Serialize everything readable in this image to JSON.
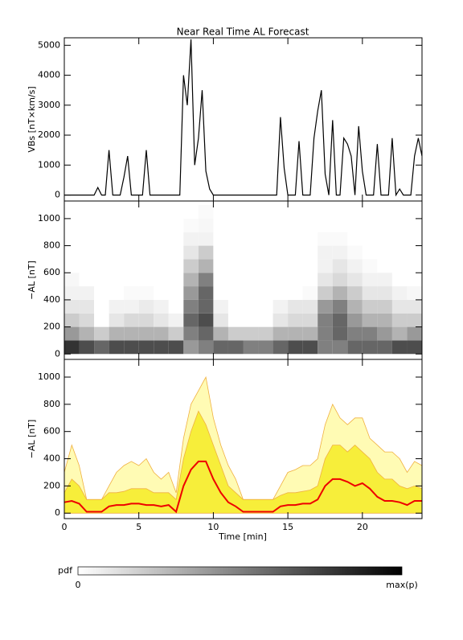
{
  "chart_data": [
    {
      "type": "line",
      "title": "Near Real Time AL Forecast",
      "ylabel": "VBs [nT×km/s]",
      "color": "#000000",
      "xlim": [
        0,
        24
      ],
      "ylim": [
        -200,
        5250
      ],
      "yticks": [
        0,
        1000,
        2000,
        3000,
        4000,
        5000
      ],
      "x": [
        0,
        0.25,
        0.5,
        0.75,
        1,
        1.25,
        1.5,
        1.75,
        2,
        2.25,
        2.5,
        2.75,
        3,
        3.25,
        3.5,
        3.75,
        4,
        4.25,
        4.5,
        4.75,
        5,
        5.25,
        5.5,
        5.75,
        6,
        6.25,
        6.5,
        6.75,
        7,
        7.25,
        7.5,
        7.75,
        8,
        8.25,
        8.5,
        8.75,
        9,
        9.25,
        9.5,
        9.75,
        10,
        10.25,
        10.5,
        10.75,
        11,
        11.25,
        11.5,
        11.75,
        12,
        12.25,
        12.5,
        12.75,
        13,
        13.25,
        13.5,
        13.75,
        14,
        14.25,
        14.5,
        14.75,
        15,
        15.25,
        15.5,
        15.75,
        16,
        16.25,
        16.5,
        16.75,
        17,
        17.25,
        17.5,
        17.75,
        18,
        18.25,
        18.5,
        18.75,
        19,
        19.25,
        19.5,
        19.75,
        20,
        20.25,
        20.5,
        20.75,
        21,
        21.25,
        21.5,
        21.75,
        22,
        22.25,
        22.5,
        22.75,
        23,
        23.25,
        23.5,
        23.75,
        24
      ],
      "values": [
        0,
        0,
        0,
        0,
        0,
        0,
        0,
        0,
        0,
        250,
        0,
        0,
        1500,
        0,
        0,
        0,
        600,
        1300,
        0,
        0,
        0,
        0,
        1500,
        0,
        0,
        0,
        0,
        0,
        0,
        0,
        0,
        0,
        4000,
        3000,
        5200,
        1000,
        1900,
        3500,
        800,
        200,
        0,
        0,
        0,
        0,
        0,
        0,
        0,
        0,
        0,
        0,
        0,
        0,
        0,
        0,
        0,
        0,
        0,
        0,
        2600,
        900,
        0,
        0,
        0,
        1800,
        0,
        0,
        0,
        1900,
        2800,
        3500,
        700,
        0,
        2500,
        0,
        0,
        1900,
        1700,
        1300,
        0,
        2300,
        800,
        0,
        0,
        0,
        1700,
        0,
        0,
        0,
        1900,
        0,
        200,
        0,
        0,
        0,
        1300,
        1900,
        1300
      ]
    },
    {
      "type": "heatmap",
      "ylabel": "−AL [nT]",
      "xlim": [
        0,
        24
      ],
      "ylim": [
        -40,
        1130
      ],
      "yticks": [
        0,
        200,
        400,
        600,
        800,
        1000
      ],
      "xbins": [
        0,
        1,
        2,
        3,
        4,
        5,
        6,
        7,
        8,
        9,
        10,
        11,
        12,
        13,
        14,
        15,
        16,
        17,
        18,
        19,
        20,
        21,
        22,
        23,
        24
      ],
      "ybins": [
        0,
        100,
        200,
        300,
        400,
        500,
        600,
        700,
        800,
        900,
        1000,
        1100
      ],
      "values": [
        [
          0.8,
          0.4,
          0.2,
          0.1,
          0.05,
          0.03,
          0,
          0,
          0,
          0,
          0
        ],
        [
          0.7,
          0.3,
          0.15,
          0.1,
          0.05,
          0,
          0,
          0,
          0,
          0,
          0
        ],
        [
          0.6,
          0.2,
          0,
          0,
          0,
          0,
          0,
          0,
          0,
          0,
          0
        ],
        [
          0.7,
          0.3,
          0.1,
          0.05,
          0,
          0,
          0,
          0,
          0,
          0,
          0
        ],
        [
          0.7,
          0.3,
          0.15,
          0.05,
          0.02,
          0,
          0,
          0,
          0,
          0,
          0
        ],
        [
          0.7,
          0.3,
          0.15,
          0.08,
          0.02,
          0,
          0,
          0,
          0,
          0,
          0
        ],
        [
          0.7,
          0.3,
          0.1,
          0.05,
          0,
          0,
          0,
          0,
          0,
          0,
          0
        ],
        [
          0.7,
          0.2,
          0.05,
          0,
          0,
          0,
          0,
          0,
          0,
          0,
          0
        ],
        [
          0.4,
          0.5,
          0.6,
          0.5,
          0.4,
          0.3,
          0.2,
          0.1,
          0.05,
          0.02,
          0
        ],
        [
          0.5,
          0.6,
          0.7,
          0.6,
          0.6,
          0.5,
          0.3,
          0.2,
          0.05,
          0.03,
          0.02
        ],
        [
          0.6,
          0.3,
          0.1,
          0.05,
          0,
          0,
          0,
          0,
          0,
          0,
          0
        ],
        [
          0.6,
          0.2,
          0,
          0,
          0,
          0,
          0,
          0,
          0,
          0,
          0
        ],
        [
          0.5,
          0.2,
          0,
          0,
          0,
          0,
          0,
          0,
          0,
          0,
          0
        ],
        [
          0.5,
          0.2,
          0,
          0,
          0,
          0,
          0,
          0,
          0,
          0,
          0
        ],
        [
          0.6,
          0.3,
          0.1,
          0.05,
          0,
          0,
          0,
          0,
          0,
          0,
          0
        ],
        [
          0.7,
          0.3,
          0.15,
          0.1,
          0,
          0,
          0,
          0,
          0,
          0,
          0
        ],
        [
          0.7,
          0.3,
          0.15,
          0.1,
          0.02,
          0,
          0,
          0,
          0,
          0,
          0
        ],
        [
          0.5,
          0.5,
          0.5,
          0.4,
          0.2,
          0.1,
          0.05,
          0.05,
          0.02,
          0,
          0
        ],
        [
          0.5,
          0.6,
          0.6,
          0.5,
          0.3,
          0.15,
          0.1,
          0.05,
          0.02,
          0,
          0
        ],
        [
          0.6,
          0.5,
          0.4,
          0.3,
          0.2,
          0.1,
          0.05,
          0.02,
          0,
          0,
          0
        ],
        [
          0.6,
          0.5,
          0.3,
          0.2,
          0.1,
          0.05,
          0.02,
          0,
          0,
          0,
          0
        ],
        [
          0.6,
          0.4,
          0.3,
          0.2,
          0.1,
          0.05,
          0,
          0,
          0,
          0,
          0
        ],
        [
          0.7,
          0.3,
          0.2,
          0.1,
          0.05,
          0,
          0,
          0,
          0,
          0,
          0
        ],
        [
          0.7,
          0.4,
          0.2,
          0.1,
          0.03,
          0,
          0,
          0,
          0,
          0,
          0
        ]
      ],
      "colorbar": {
        "label": "pdf",
        "min_label": "0",
        "max_label": "max(p)"
      }
    },
    {
      "type": "band",
      "ylabel": "−AL [nT]",
      "xlabel": "Time [min]",
      "xlim": [
        0,
        24
      ],
      "xticks": [
        0,
        5,
        10,
        15,
        20
      ],
      "ylim": [
        -40,
        1130
      ],
      "yticks": [
        0,
        200,
        400,
        600,
        800,
        1000
      ],
      "x": [
        0,
        0.5,
        1,
        1.5,
        2,
        2.5,
        3,
        3.5,
        4,
        4.5,
        5,
        5.5,
        6,
        6.5,
        7,
        7.5,
        8,
        8.5,
        9,
        9.5,
        10,
        10.5,
        11,
        11.5,
        12,
        12.5,
        13,
        13.5,
        14,
        14.5,
        15,
        15.5,
        16,
        16.5,
        17,
        17.5,
        18,
        18.5,
        19,
        19.5,
        20,
        20.5,
        21,
        21.5,
        22,
        22.5,
        23,
        23.5,
        24
      ],
      "series": [
        {
          "color": "#fffbb4",
          "fill": true,
          "values": [
            300,
            500,
            350,
            100,
            100,
            100,
            200,
            300,
            350,
            380,
            350,
            400,
            300,
            250,
            300,
            150,
            550,
            800,
            900,
            1000,
            700,
            500,
            350,
            250,
            100,
            100,
            100,
            100,
            100,
            200,
            300,
            320,
            350,
            350,
            400,
            650,
            800,
            700,
            650,
            700,
            700,
            550,
            500,
            450,
            450,
            400,
            300,
            380,
            350
          ]
        },
        {
          "color": "#f7ee3a",
          "fill": true,
          "values": [
            150,
            250,
            200,
            100,
            100,
            100,
            150,
            150,
            160,
            180,
            180,
            180,
            150,
            150,
            150,
            100,
            400,
            600,
            750,
            650,
            500,
            350,
            200,
            150,
            100,
            100,
            100,
            100,
            100,
            130,
            150,
            150,
            160,
            170,
            200,
            400,
            500,
            500,
            450,
            500,
            450,
            400,
            300,
            250,
            250,
            200,
            180,
            200,
            180
          ]
        },
        {
          "color": "#ee0000",
          "fill": false,
          "values": [
            80,
            90,
            70,
            10,
            10,
            10,
            50,
            60,
            60,
            70,
            70,
            60,
            60,
            50,
            60,
            10,
            200,
            320,
            380,
            380,
            250,
            150,
            80,
            50,
            10,
            10,
            10,
            10,
            10,
            50,
            60,
            60,
            70,
            70,
            100,
            200,
            250,
            250,
            230,
            200,
            220,
            180,
            120,
            90,
            90,
            80,
            60,
            90,
            90
          ]
        }
      ]
    }
  ]
}
